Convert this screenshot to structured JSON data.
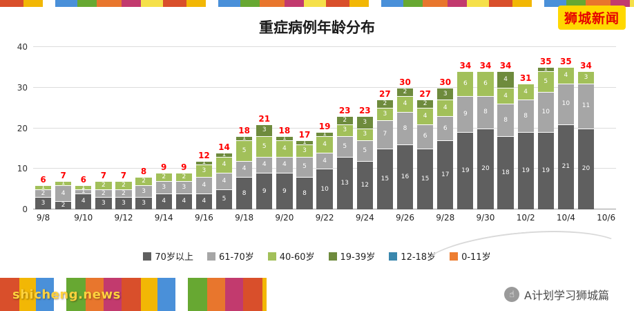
{
  "brand": {
    "site_name": "狮城新闻",
    "badge_bg": "#ffd800",
    "badge_text_color": "#e60000"
  },
  "chart": {
    "title": "重症病例年龄分布"
  },
  "chart_data": {
    "type": "bar",
    "stacked": true,
    "title": "重症病例年龄分布",
    "ylim": [
      0,
      40
    ],
    "yticks": [
      0,
      10,
      20,
      30,
      40
    ],
    "grid": true,
    "legend_position": "bottom",
    "total_label_color": "#ff0000",
    "x_tick_labels": [
      "9/8",
      "9/10",
      "9/12",
      "9/14",
      "9/16",
      "9/18",
      "9/20",
      "9/22",
      "9/24",
      "9/26",
      "9/28",
      "9/30",
      "10/2",
      "10/4",
      "10/6"
    ],
    "categories": [
      "9/8",
      "9/9",
      "9/10",
      "9/11",
      "9/12",
      "9/13",
      "9/14",
      "9/15",
      "9/16",
      "9/17",
      "9/18",
      "9/19",
      "9/20",
      "9/21",
      "9/22",
      "9/23",
      "9/24",
      "9/25",
      "9/26",
      "9/27",
      "9/28",
      "9/29",
      "9/30",
      "10/1",
      "10/2",
      "10/3",
      "10/4",
      "10/5"
    ],
    "totals": [
      6,
      7,
      6,
      7,
      7,
      8,
      9,
      9,
      12,
      14,
      18,
      21,
      18,
      17,
      19,
      23,
      23,
      27,
      30,
      27,
      30,
      34,
      34,
      34,
      31,
      35,
      35,
      34
    ],
    "series": [
      {
        "name": "70岁以上",
        "color": "#5f5f5f",
        "values": [
          3,
          2,
          4,
          3,
          3,
          3,
          4,
          4,
          4,
          5,
          8,
          9,
          9,
          8,
          10,
          13,
          12,
          15,
          16,
          15,
          17,
          19,
          20,
          18,
          19,
          19,
          21,
          20
        ]
      },
      {
        "name": "61-70岁",
        "color": "#a6a6a6",
        "values": [
          2,
          4,
          1,
          2,
          2,
          3,
          3,
          3,
          4,
          4,
          4,
          4,
          4,
          5,
          4,
          5,
          5,
          7,
          8,
          6,
          6,
          9,
          8,
          8,
          8,
          10,
          10,
          11
        ]
      },
      {
        "name": "40-60岁",
        "color": "#a2c05a",
        "values": [
          1,
          1,
          1,
          2,
          2,
          2,
          2,
          2,
          3,
          4,
          5,
          5,
          4,
          3,
          4,
          3,
          3,
          3,
          4,
          4,
          4,
          6,
          6,
          4,
          4,
          5,
          4,
          3
        ]
      },
      {
        "name": "19-39岁",
        "color": "#6e8b3d",
        "values": [
          0,
          0,
          0,
          0,
          0,
          0,
          0,
          0,
          1,
          1,
          1,
          3,
          1,
          1,
          1,
          2,
          3,
          2,
          2,
          2,
          3,
          0,
          0,
          4,
          0,
          1,
          0,
          0
        ]
      },
      {
        "name": "12-18岁",
        "color": "#3a87ad",
        "values": [
          0,
          0,
          0,
          0,
          0,
          0,
          0,
          0,
          0,
          0,
          0,
          0,
          0,
          0,
          0,
          0,
          0,
          0,
          0,
          0,
          0,
          0,
          0,
          0,
          0,
          0,
          0,
          0
        ]
      },
      {
        "name": "0-11岁",
        "color": "#ed7d31",
        "values": [
          0,
          0,
          0,
          0,
          0,
          0,
          0,
          0,
          0,
          0,
          0,
          0,
          0,
          0,
          0,
          0,
          0,
          0,
          0,
          0,
          0,
          0,
          0,
          0,
          0,
          0,
          0,
          0
        ]
      }
    ]
  },
  "footer": {
    "watermark": "shicheng.news",
    "channel": "A计划学习狮城篇",
    "hand_icon": "☝"
  }
}
